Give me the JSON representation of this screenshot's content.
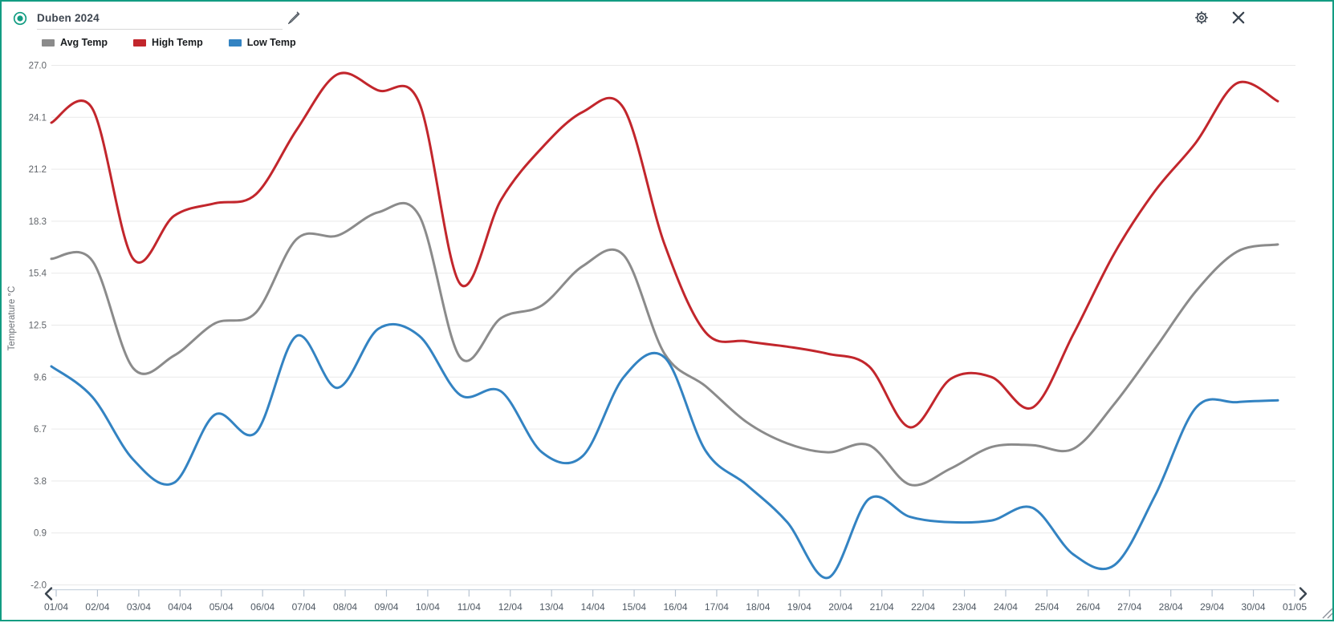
{
  "header": {
    "title": "Duben 2024"
  },
  "chart_data": {
    "type": "line",
    "title": "Duben 2024",
    "x": [
      "01/04",
      "02/04",
      "03/04",
      "04/04",
      "05/04",
      "06/04",
      "07/04",
      "08/04",
      "09/04",
      "10/04",
      "11/04",
      "12/04",
      "13/04",
      "14/04",
      "15/04",
      "16/04",
      "17/04",
      "18/04",
      "19/04",
      "20/04",
      "21/04",
      "22/04",
      "23/04",
      "24/04",
      "25/04",
      "26/04",
      "27/04",
      "28/04",
      "29/04",
      "30/04",
      "01/05"
    ],
    "ylabel": "Temperature °C",
    "ytick_labels": [
      "27.0",
      "24.1",
      "21.2",
      "18.3",
      "15.4",
      "12.5",
      "9.6",
      "6.7",
      "3.8",
      "0.9",
      "-2.0"
    ],
    "ylim": [
      -2.0,
      27.0
    ],
    "grid": "horizontal",
    "legend_position": "top-left",
    "smoothing": "spline",
    "series": [
      {
        "name": "Avg Temp",
        "color": "#8b8b8b",
        "values": [
          16.2,
          16.1,
          10.1,
          10.8,
          12.6,
          13.2,
          17.3,
          17.5,
          18.8,
          18.6,
          10.7,
          12.9,
          13.6,
          15.8,
          16.4,
          10.9,
          9.1,
          7.1,
          5.9,
          5.4,
          5.8,
          3.6,
          4.5,
          5.7,
          5.8,
          5.6,
          8.1,
          11.2,
          14.4,
          16.6,
          17.0
        ]
      },
      {
        "name": "High Temp",
        "color": "#c2262c",
        "values": [
          23.8,
          24.6,
          16.2,
          18.6,
          19.3,
          19.8,
          23.4,
          26.5,
          25.6,
          24.9,
          14.8,
          19.5,
          22.4,
          24.4,
          24.6,
          17.0,
          12.1,
          11.6,
          11.3,
          10.9,
          10.2,
          6.8,
          9.5,
          9.6,
          7.9,
          12.0,
          16.5,
          20.0,
          22.7,
          26.0,
          25.0
        ]
      },
      {
        "name": "Low Temp",
        "color": "#3383c2",
        "values": [
          10.2,
          8.5,
          5.0,
          3.7,
          7.5,
          6.5,
          11.9,
          9.0,
          12.3,
          11.9,
          8.6,
          8.8,
          5.4,
          5.2,
          9.6,
          10.7,
          5.5,
          3.6,
          1.5,
          -1.6,
          2.8,
          1.8,
          1.5,
          1.6,
          2.3,
          -0.3,
          -0.9,
          3.0,
          7.9,
          8.2,
          8.3
        ]
      }
    ],
    "x_axis": {
      "scroll_left": "‹",
      "scroll_right": "›"
    }
  },
  "colors": {
    "accent_teal": "#129c82",
    "icon_dark": "#39434e",
    "gridline": "#e9e9e9",
    "axis_line": "#c9d3de",
    "axis_tick": "#b7c3d1"
  }
}
